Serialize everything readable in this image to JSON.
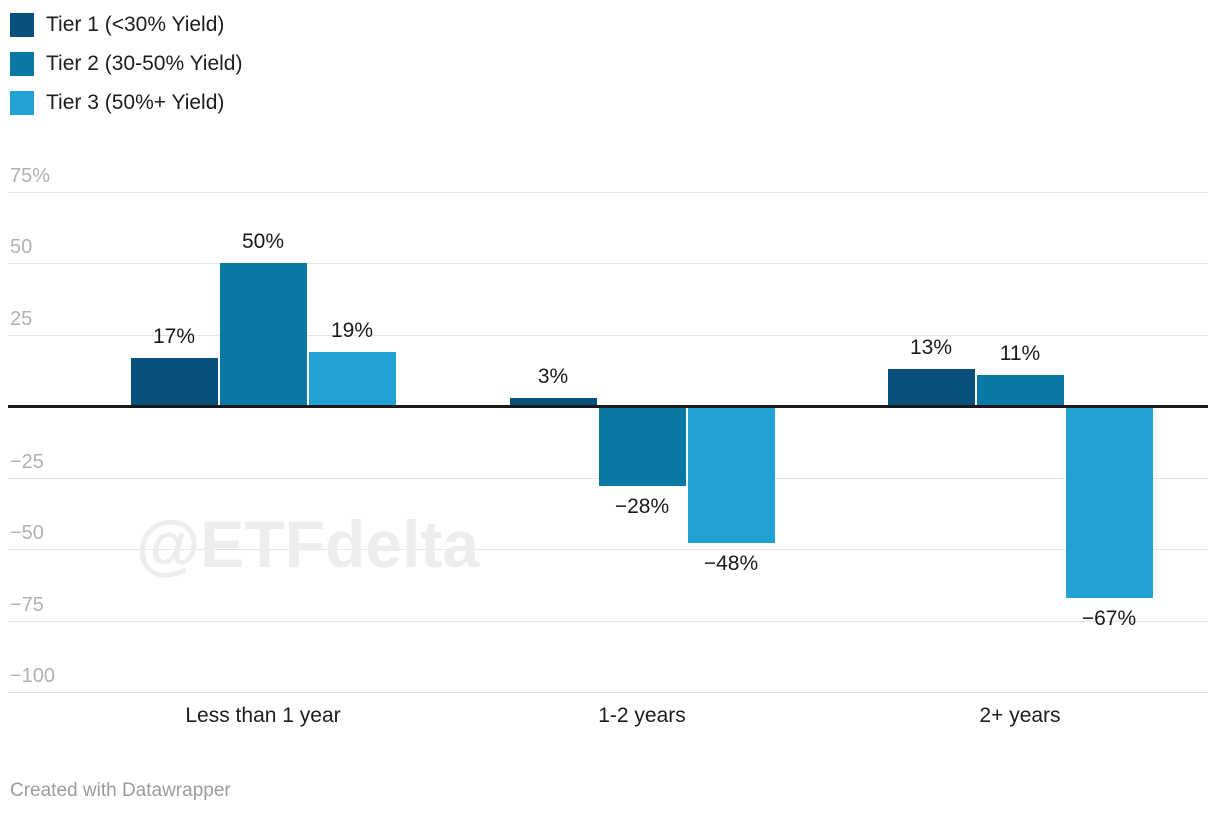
{
  "chart_data": {
    "type": "bar",
    "subtype": "grouped-column",
    "categories": [
      "Less than 1 year",
      "1-2 years",
      "2+ years"
    ],
    "series": [
      {
        "name": "Tier 1 (<30% Yield)",
        "color": "#07517c",
        "values": [
          17,
          3,
          13
        ]
      },
      {
        "name": "Tier 2 (30-50% Yield)",
        "color": "#0b79a5",
        "values": [
          50,
          -28,
          11
        ]
      },
      {
        "name": "Tier 3 (50%+ Yield)",
        "color": "#22a2d2",
        "values": [
          19,
          -48,
          -67
        ]
      }
    ],
    "value_suffix": "%",
    "ylim": [
      -100,
      75
    ],
    "y_ticks": [
      75,
      50,
      25,
      0,
      -25,
      -50,
      -75,
      -100
    ],
    "y_tick_labels": [
      "75%",
      "50",
      "25",
      "",
      "−25",
      "−50",
      "−75",
      "−100"
    ],
    "grid": true,
    "legend_position": "top-left",
    "bar_value_labels": {
      "positive_position": "above-bar",
      "negative_position": "below-bar"
    },
    "colors": {
      "gridline": "#e4e4e4",
      "zero_line": "#1a1a1a",
      "tick_label": "#b1b1b1",
      "category_label": "#1d1d1d",
      "value_label": "#1a1a1a"
    }
  },
  "watermark": "@ETFdelta",
  "footer": {
    "credit": "Created with Datawrapper"
  }
}
